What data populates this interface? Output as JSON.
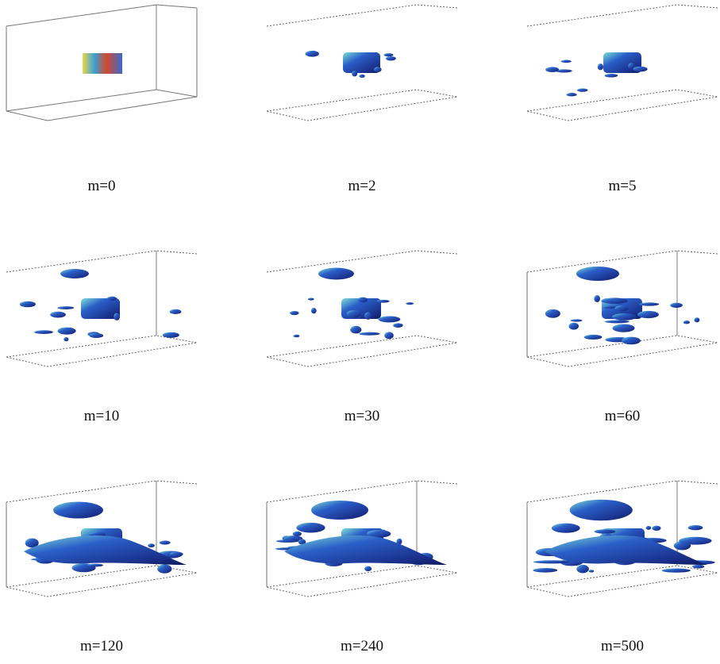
{
  "panels": [
    {
      "label": "m=0"
    },
    {
      "label": "m=2"
    },
    {
      "label": "m=5"
    },
    {
      "label": "m=10"
    },
    {
      "label": "m=30"
    },
    {
      "label": "m=60"
    },
    {
      "label": "m=120"
    },
    {
      "label": "m=240"
    },
    {
      "label": "m=500"
    }
  ]
}
